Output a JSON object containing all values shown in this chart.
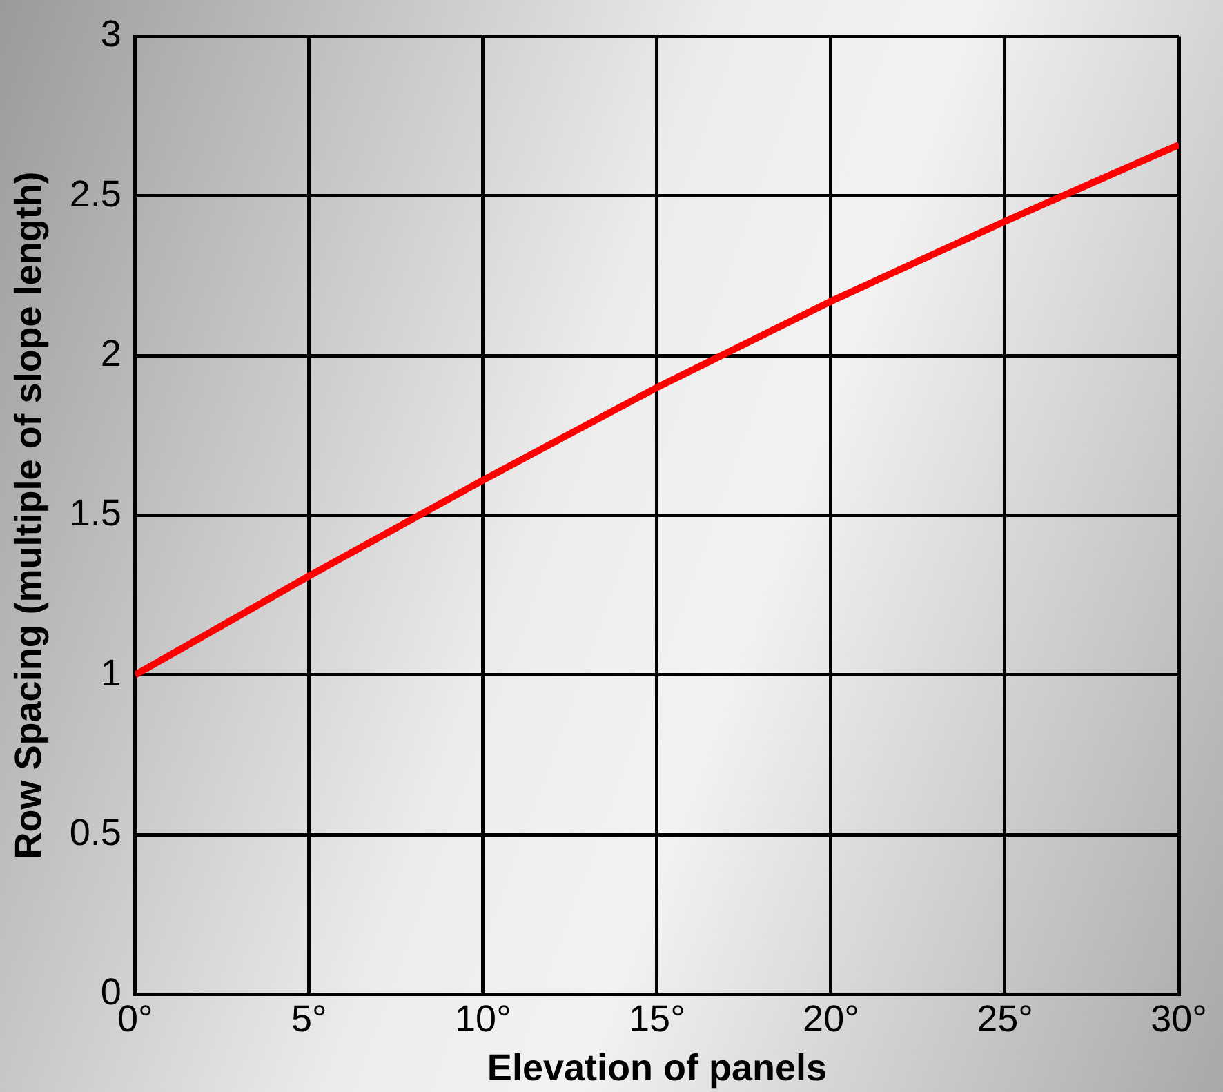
{
  "chart_data": {
    "type": "line",
    "xlabel": "Elevation of panels",
    "ylabel": "Row Spacing (multiple of slope length)",
    "x": [
      0,
      5,
      10,
      15,
      20,
      25,
      30
    ],
    "series": [
      {
        "color": "#ff0000",
        "values": [
          1,
          1.31,
          1.61,
          1.9,
          2.17,
          2.42,
          2.66
        ]
      }
    ],
    "xlim": [
      0,
      30
    ],
    "xticks": [
      {
        "value": 0,
        "label": "0°"
      },
      {
        "value": 5,
        "label": "5°"
      },
      {
        "value": 10,
        "label": "10°"
      },
      {
        "value": 15,
        "label": "15°"
      },
      {
        "value": 20,
        "label": "20°"
      },
      {
        "value": 25,
        "label": "25°"
      },
      {
        "value": 30,
        "label": "30°"
      }
    ],
    "ylim": [
      0,
      3
    ],
    "yticks": [
      0,
      0.5,
      1,
      1.5,
      2,
      2.5,
      3
    ],
    "grid": true,
    "legend": false,
    "marker": "none",
    "line_style": "solid"
  }
}
